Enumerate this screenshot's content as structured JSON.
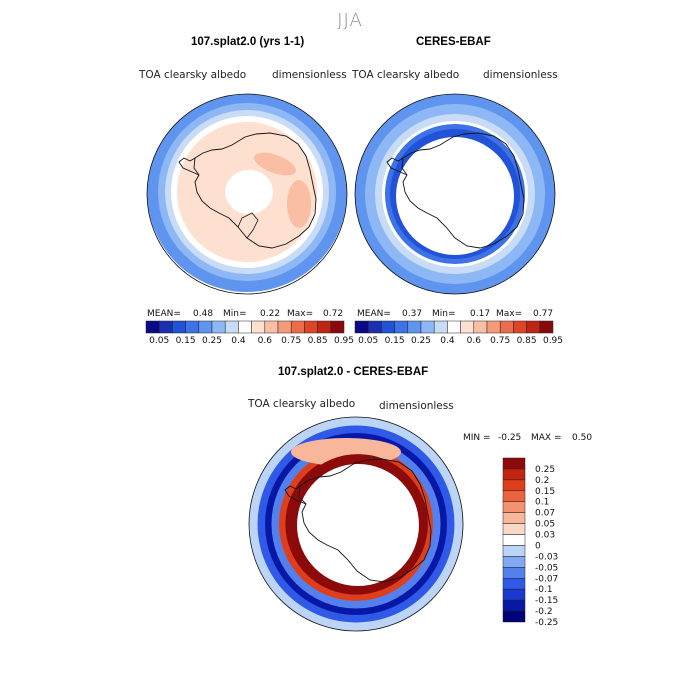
{
  "season": "JJA",
  "panels": [
    {
      "title": "107.splat2.0 (yrs 1-1)",
      "variable": "TOA clearsky albedo",
      "units": "dimensionless",
      "mean_label": "MEAN=",
      "mean": "0.48",
      "min_label": "Min=",
      "min": "0.22",
      "max_label": "Max=",
      "max": "0.72"
    },
    {
      "title": "CERES-EBAF",
      "variable": "TOA clearsky albedo",
      "units": "dimensionless",
      "mean_label": "MEAN=",
      "mean": "0.37",
      "min_label": "Min=",
      "min": "0.17",
      "max_label": "Max=",
      "max": "0.77"
    },
    {
      "title": "107.splat2.0 - CERES-EBAF",
      "variable": "TOA clearsky albedo",
      "units": "dimensionless",
      "min_label": "MIN =",
      "min": "-0.25",
      "max_label": "MAX =",
      "max": "0.50"
    }
  ],
  "chart_data": [
    {
      "type": "heatmap",
      "title": "107.splat2.0 (yrs 1-1)",
      "projection": "south polar stereographic",
      "field": "TOA clearsky albedo",
      "units": "dimensionless",
      "mean": 0.48,
      "min": 0.22,
      "max": 0.72,
      "colorbar_levels": [
        0.05,
        0.1,
        0.15,
        0.2,
        0.25,
        0.3,
        0.4,
        0.5,
        0.6,
        0.7,
        0.75,
        0.8,
        0.85,
        0.9,
        0.95
      ],
      "colorbar_tick_labels": [
        "0.05",
        "0.15",
        "0.25",
        "0.4",
        "0.6",
        "0.75",
        "0.85",
        "0.95"
      ],
      "colorbar_orientation": "horizontal",
      "zonal_bands": [
        {
          "r_from": 1.0,
          "r_to": 0.89,
          "level": 0.25
        },
        {
          "r_from": 0.89,
          "r_to": 0.82,
          "level": 0.3
        },
        {
          "r_from": 0.82,
          "r_to": 0.76,
          "level": 0.4
        },
        {
          "r_from": 0.76,
          "r_to": 0.7,
          "level": 0.5
        },
        {
          "r_from": 0.7,
          "r_to": 0.0,
          "level": 0.6
        }
      ],
      "regions": [
        {
          "name": "ice-sheet-interior-high",
          "level": 0.7
        },
        {
          "name": "pole-no-data",
          "level": null
        }
      ]
    },
    {
      "type": "heatmap",
      "title": "CERES-EBAF",
      "projection": "south polar stereographic",
      "field": "TOA clearsky albedo",
      "units": "dimensionless",
      "mean": 0.37,
      "min": 0.17,
      "max": 0.77,
      "colorbar_levels": [
        0.05,
        0.1,
        0.15,
        0.2,
        0.25,
        0.3,
        0.4,
        0.5,
        0.6,
        0.7,
        0.75,
        0.8,
        0.85,
        0.9,
        0.95
      ],
      "colorbar_tick_labels": [
        "0.05",
        "0.15",
        "0.25",
        "0.4",
        "0.6",
        "0.75",
        "0.85",
        "0.95"
      ],
      "colorbar_orientation": "horizontal",
      "zonal_bands": [
        {
          "r_from": 1.0,
          "r_to": 0.9,
          "level": 0.25
        },
        {
          "r_from": 0.9,
          "r_to": 0.8,
          "level": 0.3
        },
        {
          "r_from": 0.8,
          "r_to": 0.73,
          "level": 0.4
        },
        {
          "r_from": 0.73,
          "r_to": 0.7,
          "level": 0.5
        },
        {
          "r_from": 0.7,
          "r_to": 0.65,
          "level": 0.2
        },
        {
          "r_from": 0.65,
          "r_to": 0.59,
          "level": 0.15
        }
      ],
      "regions": [
        {
          "name": "polar-night-no-data",
          "level": null
        }
      ]
    },
    {
      "type": "heatmap",
      "title": "107.splat2.0 - CERES-EBAF",
      "projection": "south polar stereographic",
      "field": "TOA clearsky albedo",
      "units": "dimensionless",
      "min": -0.25,
      "max": 0.5,
      "colorbar_levels": [
        -0.25,
        -0.2,
        -0.15,
        -0.1,
        -0.07,
        -0.05,
        -0.03,
        0,
        0.03,
        0.05,
        0.07,
        0.1,
        0.15,
        0.2,
        0.25
      ],
      "colorbar_tick_labels": [
        "0.25",
        "0.2",
        "0.15",
        "0.1",
        "0.07",
        "0.05",
        "0.03",
        "0",
        "-0.03",
        "-0.05",
        "-0.07",
        "-0.1",
        "-0.15",
        "-0.2",
        "-0.25"
      ],
      "colorbar_orientation": "vertical",
      "zonal_bands": [
        {
          "r_from": 1.0,
          "r_to": 0.92,
          "level": -0.03
        },
        {
          "r_from": 0.92,
          "r_to": 0.85,
          "level": -0.1
        },
        {
          "r_from": 0.85,
          "r_to": 0.79,
          "level": -0.2
        },
        {
          "r_from": 0.79,
          "r_to": 0.72,
          "level": -0.07
        },
        {
          "r_from": 0.72,
          "r_to": 0.66,
          "level": 0.15
        },
        {
          "r_from": 0.66,
          "r_to": 0.0,
          "level": 0.25
        }
      ],
      "regions": [
        {
          "name": "positive-anomaly-near-coast-north",
          "level": 0.05
        }
      ]
    }
  ],
  "colors": {
    "ramp": [
      "#0a0a85",
      "#1a2fb4",
      "#2152d8",
      "#3d73e6",
      "#5f95ef",
      "#8db7f5",
      "#c8dcf7",
      "#ffffff",
      "#fde0d0",
      "#f9bea3",
      "#f59b7a",
      "#ec6d4c",
      "#dc4527",
      "#be2514",
      "#8a0a0a"
    ],
    "diff_ramp": [
      "#00007a",
      "#0818a6",
      "#1838d0",
      "#2f59e6",
      "#5480ee",
      "#82a8f3",
      "#bcd4f6",
      "#ffffff",
      "#fcd7c5",
      "#f8b79b",
      "#f4916f",
      "#ec6340",
      "#dd3f1d",
      "#c12510",
      "#8c0a0a"
    ],
    "coast": "#111111",
    "nodata": "#ffffff"
  }
}
